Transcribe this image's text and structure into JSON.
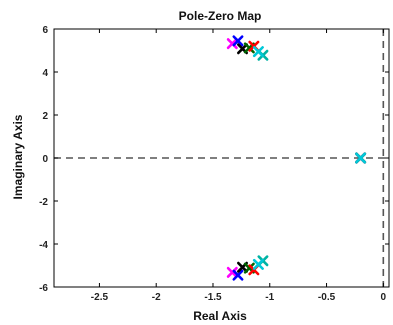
{
  "chart_data": {
    "type": "scatter",
    "title": "Pole-Zero Map",
    "xlabel": "Real Axis",
    "ylabel": "Imaginary Axis",
    "xlim": [
      -2.9,
      0.05
    ],
    "ylim": [
      -6,
      6
    ],
    "xticks": [
      -2.5,
      -2,
      -1.5,
      -1,
      -0.5,
      0
    ],
    "xtick_labels": [
      "-2.5",
      "-2",
      "-1.5",
      "-1",
      "-0.5",
      "0"
    ],
    "yticks": [
      -6,
      -4,
      -2,
      0,
      2,
      4,
      6
    ],
    "ytick_labels": [
      "-6",
      "-4",
      "-2",
      "0",
      "2",
      "4",
      "6"
    ],
    "grid": false,
    "reference_lines": {
      "x": 0,
      "y": 0
    },
    "series": [
      {
        "color": "#ff00ff",
        "points": [
          [
            -1.33,
            5.32
          ],
          [
            -1.33,
            -5.32
          ],
          [
            -0.2,
            0
          ]
        ]
      },
      {
        "color": "#0000ff",
        "points": [
          [
            -1.28,
            5.45
          ],
          [
            -1.28,
            -5.45
          ],
          [
            -0.2,
            0
          ]
        ]
      },
      {
        "color": "#000000",
        "points": [
          [
            -1.24,
            5.08
          ],
          [
            -1.24,
            -5.08
          ],
          [
            -0.2,
            0
          ]
        ]
      },
      {
        "color": "#006400",
        "points": [
          [
            -1.18,
            5.12
          ],
          [
            -1.18,
            -5.12
          ],
          [
            -0.2,
            0
          ]
        ]
      },
      {
        "color": "#ff0000",
        "points": [
          [
            -1.14,
            5.2
          ],
          [
            -1.14,
            -5.2
          ],
          [
            -0.2,
            0
          ]
        ]
      },
      {
        "color": "#00b3a4",
        "points": [
          [
            -1.06,
            4.78
          ],
          [
            -1.06,
            -4.78
          ],
          [
            -0.2,
            0
          ]
        ]
      },
      {
        "color": "#00c8d8",
        "points": [
          [
            -1.1,
            4.95
          ],
          [
            -1.1,
            -4.95
          ],
          [
            -0.2,
            0
          ]
        ]
      }
    ]
  }
}
